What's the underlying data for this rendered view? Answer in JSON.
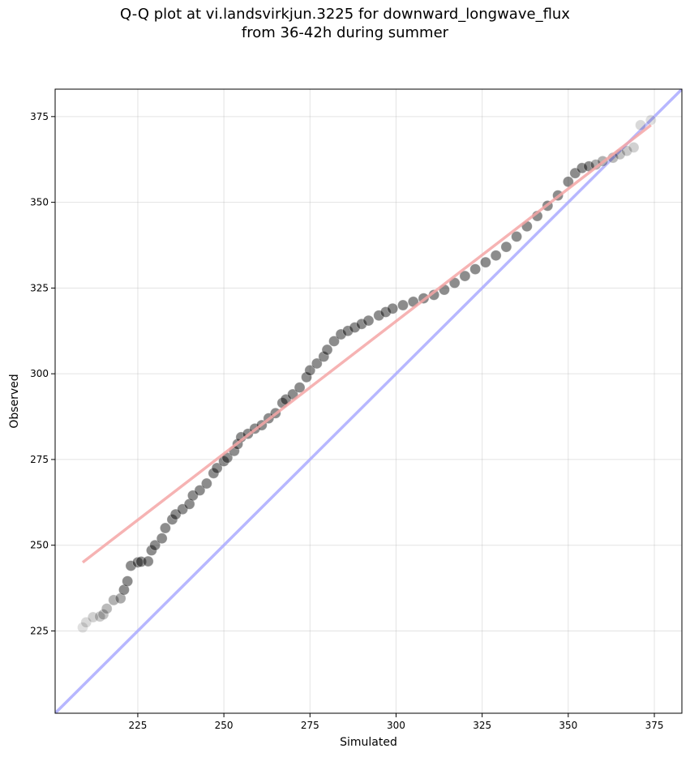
{
  "chart_data": {
    "type": "scatter",
    "title_lines": [
      "Q-Q plot at vi.landsvirkjun.3225 for downward_longwave_flux",
      "from 36-42h during summer"
    ],
    "xlabel": "Simulated",
    "ylabel": "Observed",
    "xlim": [
      201,
      383
    ],
    "ylim": [
      201,
      383
    ],
    "xticks": [
      225,
      250,
      275,
      300,
      325,
      350,
      375
    ],
    "yticks": [
      225,
      250,
      275,
      300,
      325,
      350,
      375
    ],
    "grid": true,
    "reference_line": {
      "from": [
        201,
        201
      ],
      "to": [
        383,
        383
      ],
      "color": "#aaaaff"
    },
    "fit_line": {
      "from": [
        209,
        245
      ],
      "to": [
        374,
        372.5
      ],
      "color": "#f4a6a6"
    },
    "point_color": "#000000",
    "quantile_points": [
      [
        209,
        226
      ],
      [
        210,
        227.5
      ],
      [
        212,
        229
      ],
      [
        214,
        229.2
      ],
      [
        215,
        229.8
      ],
      [
        216,
        231.5
      ],
      [
        218,
        234
      ],
      [
        220,
        234.5
      ],
      [
        221,
        237
      ],
      [
        222,
        239.5
      ],
      [
        223,
        244
      ],
      [
        225,
        245
      ],
      [
        226,
        245.2
      ],
      [
        228,
        245.3
      ],
      [
        229,
        248.5
      ],
      [
        230,
        250
      ],
      [
        232,
        252
      ],
      [
        233,
        255
      ],
      [
        235,
        257.5
      ],
      [
        236,
        259
      ],
      [
        238,
        260.5
      ],
      [
        240,
        262
      ],
      [
        241,
        264.5
      ],
      [
        243,
        266
      ],
      [
        245,
        268
      ],
      [
        247,
        271
      ],
      [
        248,
        272.5
      ],
      [
        250,
        274.5
      ],
      [
        251,
        275.5
      ],
      [
        253,
        277.5
      ],
      [
        254,
        279.5
      ],
      [
        255,
        281.5
      ],
      [
        257,
        282.5
      ],
      [
        259,
        284
      ],
      [
        261,
        285
      ],
      [
        263,
        287
      ],
      [
        265,
        288.5
      ],
      [
        267,
        291.5
      ],
      [
        268,
        292.5
      ],
      [
        270,
        294
      ],
      [
        272,
        296
      ],
      [
        274,
        299
      ],
      [
        275,
        301
      ],
      [
        277,
        303
      ],
      [
        279,
        305
      ],
      [
        280,
        307
      ],
      [
        282,
        309.5
      ],
      [
        284,
        311.5
      ],
      [
        286,
        312.5
      ],
      [
        288,
        313.5
      ],
      [
        290,
        314.5
      ],
      [
        292,
        315.5
      ],
      [
        295,
        317
      ],
      [
        297,
        318
      ],
      [
        299,
        319
      ],
      [
        302,
        320
      ],
      [
        305,
        321
      ],
      [
        308,
        322
      ],
      [
        311,
        323
      ],
      [
        314,
        324.5
      ],
      [
        317,
        326.5
      ],
      [
        320,
        328.5
      ],
      [
        323,
        330.5
      ],
      [
        326,
        332.5
      ],
      [
        329,
        334.5
      ],
      [
        332,
        337
      ],
      [
        335,
        340
      ],
      [
        338,
        343
      ],
      [
        341,
        346
      ],
      [
        344,
        349
      ],
      [
        347,
        352
      ],
      [
        350,
        356
      ],
      [
        352,
        358.5
      ],
      [
        354,
        360
      ],
      [
        356,
        360.5
      ],
      [
        358,
        361
      ],
      [
        360,
        362
      ],
      [
        363,
        363
      ],
      [
        365,
        364
      ],
      [
        367,
        365
      ],
      [
        369,
        366
      ],
      [
        371,
        372.5
      ],
      [
        374,
        374
      ]
    ]
  }
}
